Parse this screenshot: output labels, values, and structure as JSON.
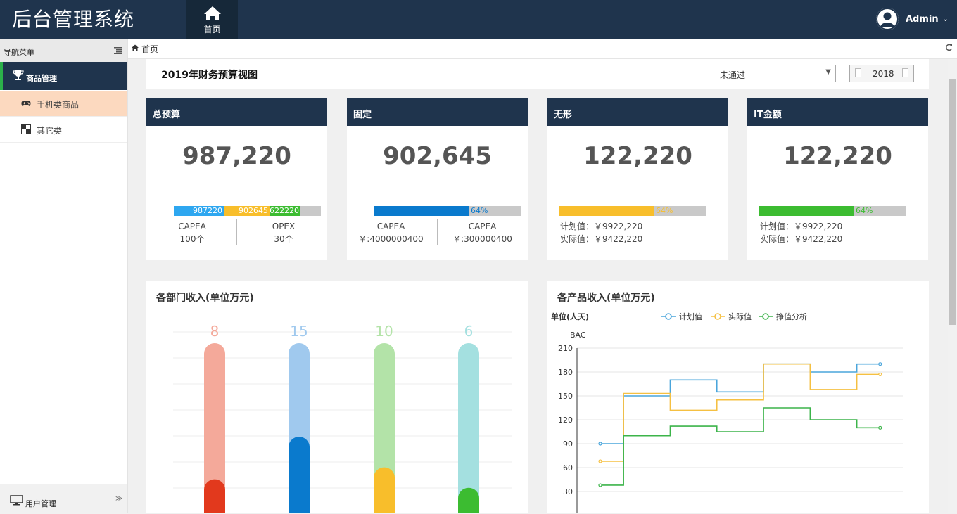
{
  "header": {
    "app_title": "后台管理系统",
    "home_tab": "首页",
    "user": "Admin"
  },
  "sidebar": {
    "title": "导航菜单",
    "groups": [
      {
        "label": "商品管理",
        "icon": "trophy-icon",
        "items": [
          {
            "label": "手机类商品",
            "icon": "gamepad-icon"
          },
          {
            "label": "其它类",
            "icon": "checker-icon"
          }
        ]
      },
      {
        "label": "用户管理",
        "icon": "monitor-icon"
      }
    ]
  },
  "breadcrumb": {
    "label": "首页"
  },
  "view": {
    "title": "2019年财务预算视图",
    "status_value": "未通过",
    "year": "2018"
  },
  "cards": [
    {
      "title": "总预算",
      "value": "987,220",
      "segments": [
        {
          "label": "987220",
          "share": 0.34,
          "color": "#2ea7f0"
        },
        {
          "label": "902645",
          "share": 0.31,
          "color": "#f8be2b"
        },
        {
          "label": "622220",
          "share": 0.21,
          "color": "#3cbc31"
        }
      ],
      "left": {
        "name": "CAPEA",
        "value": "100个"
      },
      "right": {
        "name": "OPEX",
        "value": "30个"
      }
    },
    {
      "title": "固定",
      "value": "902,645",
      "progress": 0.64,
      "progress_label": "64%",
      "color": "#0a7acd",
      "left": {
        "name": "CAPEA",
        "value": "￥:4000000400"
      },
      "right": {
        "name": "CAPEA",
        "value": "￥:300000400"
      }
    },
    {
      "title": "无形",
      "value": "122,220",
      "progress": 0.64,
      "progress_label": "64%",
      "color": "#f8be2b",
      "plan": "计划值：￥9922,220",
      "actual": "实际值：￥9422,220"
    },
    {
      "title": "IT金额",
      "value": "122,220",
      "progress": 0.64,
      "progress_label": "64%",
      "color": "#3cbc31",
      "plan": "计划值：￥9922,220",
      "actual": "实际值：￥9422,220"
    }
  ],
  "chart_data": [
    {
      "type": "bar",
      "title": "各部门收入(单位万元)",
      "categories": [
        "",
        "",
        "",
        ""
      ],
      "values": [
        8,
        15,
        10,
        6
      ],
      "fill_levels": [
        0.2,
        0.45,
        0.27,
        0.15
      ],
      "colors": [
        "#e2391d",
        "#0a7acd",
        "#f8be2b",
        "#3cbc31"
      ],
      "bg_colors": [
        "#f4a99a",
        "#a0c9ee",
        "#b3e3a8",
        "#a4e0e0"
      ],
      "grid": true
    },
    {
      "type": "line",
      "title": "各产品收入(单位万元)",
      "unit_label": "单位(人天)",
      "ylabel": "BAC",
      "step": true,
      "ylim": [
        0,
        210
      ],
      "yticks": [
        30,
        60,
        90,
        120,
        150,
        180,
        210
      ],
      "x": [
        0,
        1,
        2,
        3,
        4,
        5,
        6
      ],
      "legend": [
        "计划值",
        "实际值",
        "挣值分析"
      ],
      "legend_position": "top",
      "series": [
        {
          "name": "计划值",
          "color": "#4aa5db",
          "values": [
            90,
            150,
            170,
            155,
            190,
            180,
            190
          ]
        },
        {
          "name": "实际值",
          "color": "#f5c042",
          "values": [
            68,
            153,
            132,
            145,
            190,
            158,
            177
          ]
        },
        {
          "name": "挣值分析",
          "color": "#3cb44a",
          "values": [
            38,
            100,
            112,
            105,
            135,
            120,
            110
          ]
        }
      ]
    }
  ]
}
